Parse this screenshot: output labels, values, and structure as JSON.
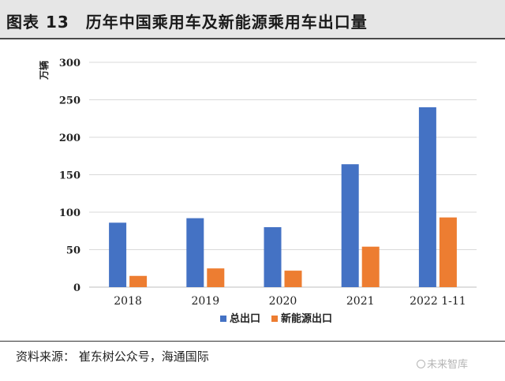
{
  "header": {
    "title": "图表 13　历年中国乘用车及新能源乘用车出口量"
  },
  "chart_data": {
    "type": "bar",
    "title": "",
    "ylabel": "万辆",
    "xlabel": "",
    "categories": [
      "2018",
      "2019",
      "2020",
      "2021",
      "2022 1-11"
    ],
    "series": [
      {
        "name": "总出口",
        "values": [
          86,
          92,
          80,
          164,
          240
        ],
        "color": "#4472c4"
      },
      {
        "name": "新能源出口",
        "values": [
          15,
          25,
          22,
          54,
          93
        ],
        "color": "#ed7d31"
      }
    ],
    "ylim": [
      0,
      300
    ],
    "yticks": [
      "0",
      "50",
      "100",
      "150",
      "200",
      "250",
      "300"
    ],
    "grid": true,
    "legend_position": "bottom"
  },
  "footer": {
    "source": "资料来源：  崔东树公众号，海通国际",
    "watermark": "未来智库"
  }
}
